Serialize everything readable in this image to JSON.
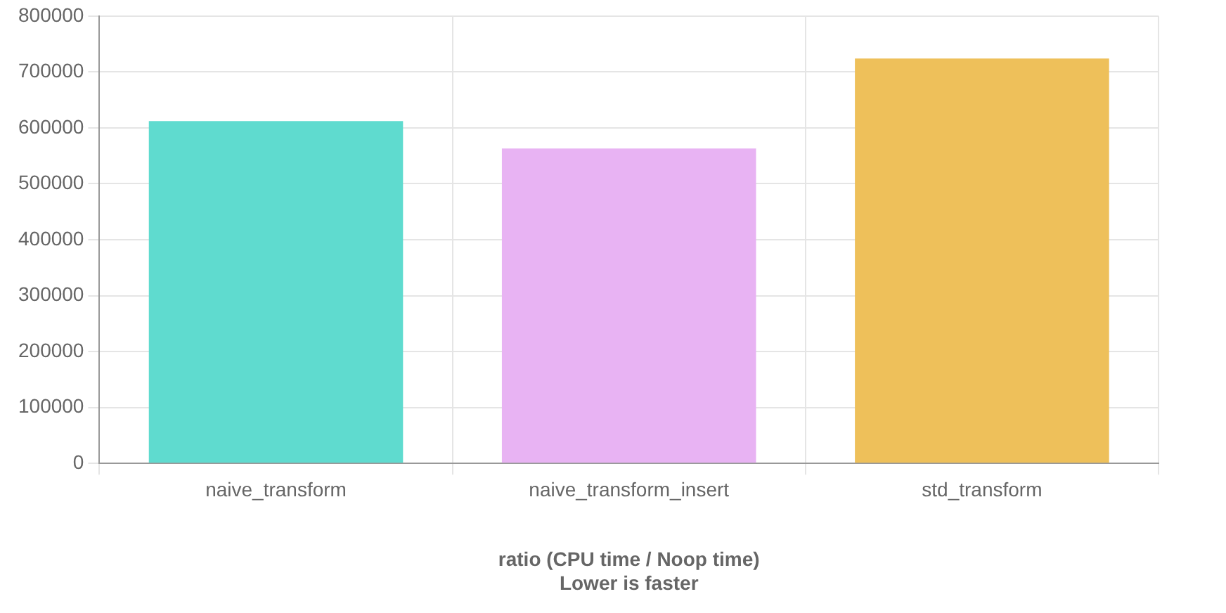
{
  "chart_data": {
    "type": "bar",
    "xlabel": "ratio (CPU time / Noop time)\nLower is faster",
    "categories": [
      "naive_transform",
      "naive_transform_insert",
      "std_transform"
    ],
    "values": [
      612000,
      563000,
      724000
    ],
    "colors": [
      "#5fdbcf",
      "#e8b3f3",
      "#eec05a"
    ],
    "ylim": [
      0,
      800000
    ],
    "yticks": [
      0,
      100000,
      200000,
      300000,
      400000,
      500000,
      600000,
      700000,
      800000
    ],
    "grid": true,
    "legend": false
  }
}
